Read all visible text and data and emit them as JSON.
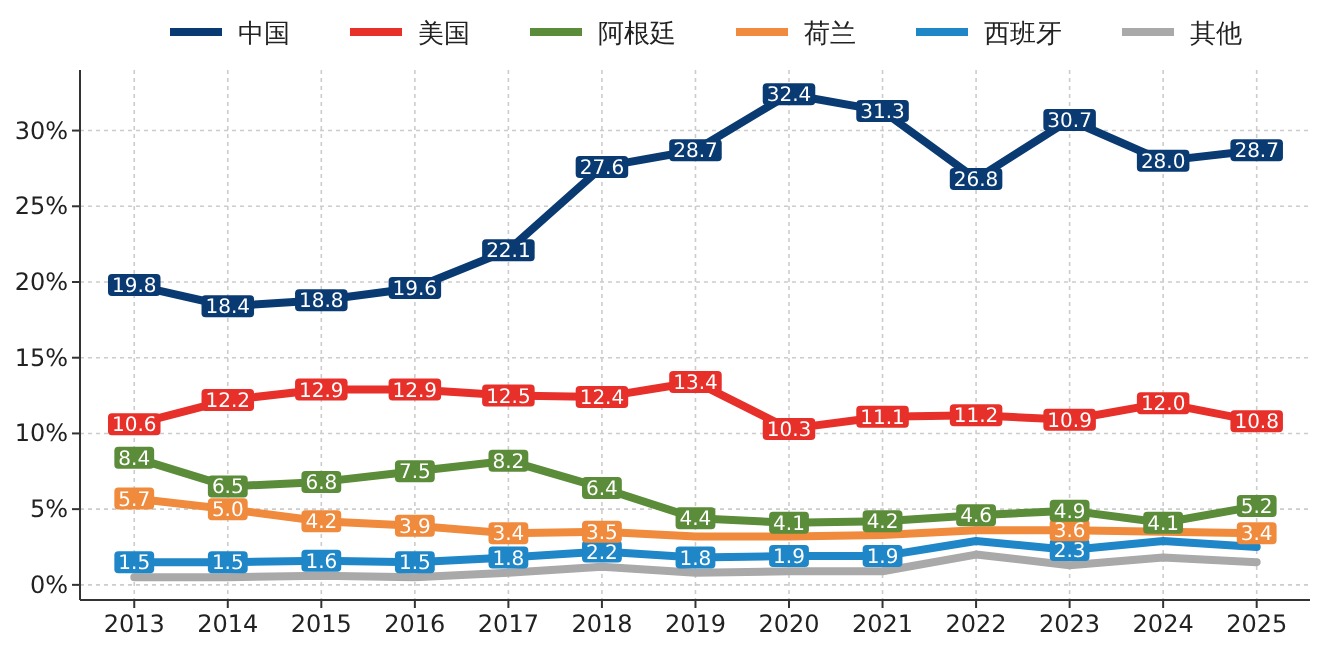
{
  "chart_data": {
    "type": "line",
    "categories": [
      "2013",
      "2014",
      "2015",
      "2016",
      "2017",
      "2018",
      "2019",
      "2020",
      "2021",
      "2022",
      "2023",
      "2024",
      "2025"
    ],
    "ylim": [
      -1,
      34
    ],
    "yticks": [
      {
        "value": 0,
        "label": "0%"
      },
      {
        "value": 5,
        "label": "5%"
      },
      {
        "value": 10,
        "label": "10%"
      },
      {
        "value": 15,
        "label": "15%"
      },
      {
        "value": 20,
        "label": "20%"
      },
      {
        "value": 25,
        "label": "25%"
      },
      {
        "value": 30,
        "label": "30%"
      }
    ],
    "grid": true,
    "legend": "top",
    "line_style": "solid",
    "series": [
      {
        "name": "中国",
        "color": "#0a3a72",
        "marker": "square",
        "values": [
          19.8,
          18.4,
          18.8,
          19.6,
          22.1,
          27.6,
          28.7,
          32.4,
          31.3,
          26.8,
          30.7,
          28.0,
          28.7
        ],
        "value_labels": [
          "19.8",
          "18.4",
          "18.8",
          "19.6",
          "22.1",
          "27.6",
          "28.7",
          "32.4",
          "31.3",
          "26.8",
          "30.7",
          "28.0",
          "28.7"
        ]
      },
      {
        "name": "美国",
        "color": "#e8302a",
        "marker": "square",
        "values": [
          10.6,
          12.2,
          12.9,
          12.9,
          12.5,
          12.4,
          13.4,
          10.3,
          11.1,
          11.2,
          10.9,
          12.0,
          10.8
        ],
        "value_labels": [
          "10.6",
          "12.2",
          "12.9",
          "12.9",
          "12.5",
          "12.4",
          "13.4",
          "10.3",
          "11.1",
          "11.2",
          "10.9",
          "12.0",
          "10.8"
        ]
      },
      {
        "name": "阿根廷",
        "color": "#5b8c3a",
        "marker": "square",
        "values": [
          8.4,
          6.5,
          6.8,
          7.5,
          8.2,
          6.4,
          4.4,
          4.1,
          4.2,
          4.6,
          4.9,
          4.1,
          5.2
        ],
        "value_labels": [
          "8.4",
          "6.5",
          "6.8",
          "7.5",
          "8.2",
          "6.4",
          "4.4",
          "4.1",
          "4.2",
          "4.6",
          "4.9",
          "4.1",
          "5.2"
        ]
      },
      {
        "name": "荷兰",
        "color": "#f08a3c",
        "marker": "square",
        "values": [
          5.7,
          5.0,
          4.2,
          3.9,
          3.4,
          3.5,
          3.2,
          3.2,
          3.3,
          3.6,
          3.6,
          3.5,
          3.4
        ],
        "value_labels": [
          "5.7",
          "5.0",
          "4.2",
          "3.9",
          "3.4",
          "3.5",
          null,
          null,
          null,
          null,
          "3.6",
          null,
          "3.4"
        ]
      },
      {
        "name": "西班牙",
        "color": "#1f87c8",
        "marker": "square",
        "values": [
          1.5,
          1.5,
          1.6,
          1.5,
          1.8,
          2.2,
          1.8,
          1.9,
          1.9,
          2.9,
          2.3,
          2.9,
          2.5
        ],
        "value_labels": [
          "1.5",
          "1.5",
          "1.6",
          "1.5",
          "1.8",
          "2.2",
          "1.8",
          "1.9",
          "1.9",
          null,
          "2.3",
          null,
          null
        ]
      },
      {
        "name": "其他",
        "color": "#a9a9a9",
        "values": [
          0.5,
          0.5,
          0.6,
          0.5,
          0.8,
          1.2,
          0.8,
          0.9,
          0.9,
          2.0,
          1.3,
          1.8,
          1.5
        ]
      }
    ]
  }
}
